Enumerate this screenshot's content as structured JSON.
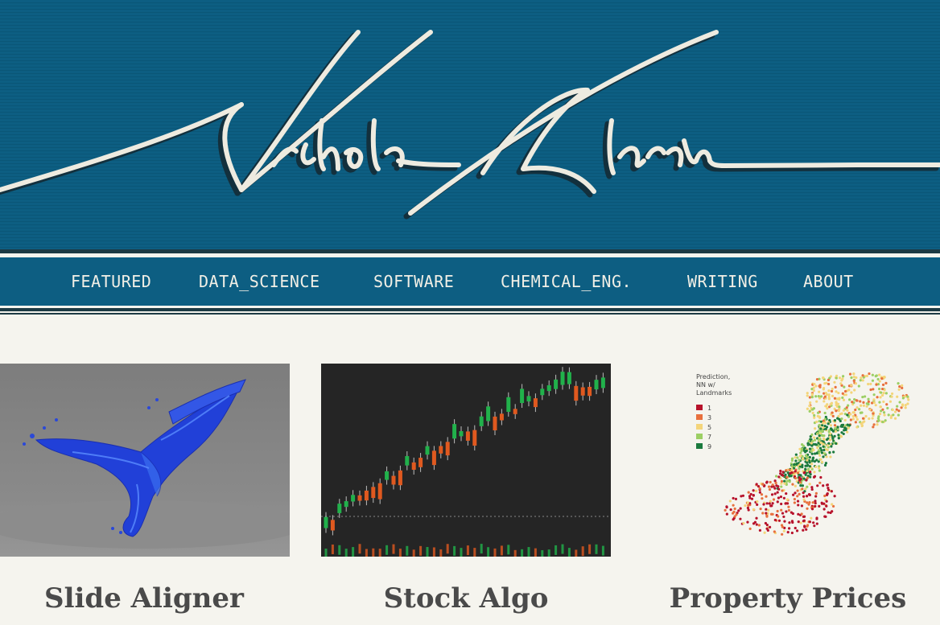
{
  "header": {
    "signature_text": "Nicholas Alarcon"
  },
  "nav": {
    "items": [
      "FEATURED",
      "DATA_SCIENCE",
      "SOFTWARE",
      "CHEMICAL_ENG.",
      "WRITING",
      "ABOUT"
    ]
  },
  "cards": [
    {
      "title": "Slide Aligner",
      "image": "blue-3d-mesh-whale"
    },
    {
      "title": "Stock Algo",
      "image": "candlestick-chart"
    },
    {
      "title": "Property Prices",
      "image": "scatter-map"
    }
  ],
  "property_legend": {
    "title_lines": [
      "Prediction,",
      "NN w/",
      "Landmarks"
    ],
    "entries": [
      {
        "label": "1",
        "color": "#b7122b"
      },
      {
        "label": "3",
        "color": "#e8703d"
      },
      {
        "label": "5",
        "color": "#f4d57a"
      },
      {
        "label": "7",
        "color": "#9ccf64"
      },
      {
        "label": "9",
        "color": "#1b7a3e"
      }
    ]
  },
  "colors": {
    "banner": "#0d5e82",
    "dark_band": "#1d3a44",
    "page_bg": "#f5f4ee",
    "signature": "#eeebe0"
  }
}
